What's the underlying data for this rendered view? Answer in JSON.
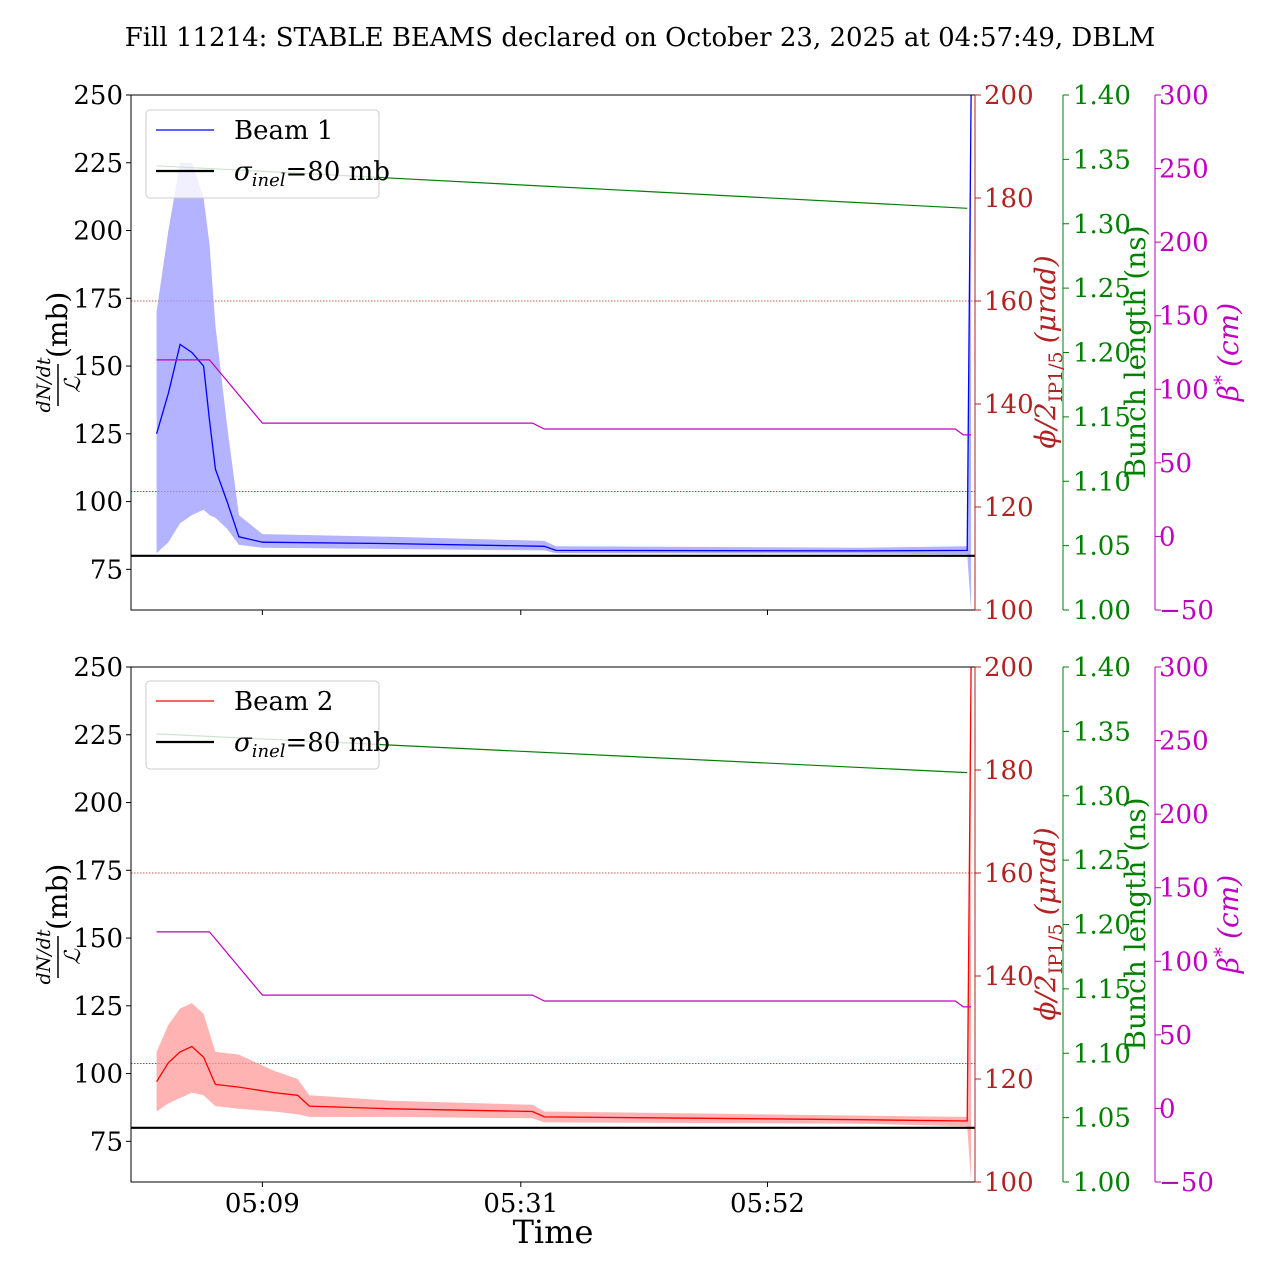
{
  "title": "Fill 11214: STABLE BEAMS declared on October 23, 2025 at 04:57:49, DBLM",
  "x_axis": {
    "label": "Time",
    "ticks": [
      "05:09",
      "05:31",
      "05:52"
    ]
  },
  "axes_labels": {
    "left_frac_num": "dN/dt",
    "left_frac_den": "ℒ",
    "left_unit": "(mb)",
    "phi_main": "ϕ/2",
    "phi_sub": "IP1/5",
    "phi_unit": "(μrad)",
    "bunch": "Bunch length (ns)",
    "beta_main": "β",
    "beta_sup": "*",
    "beta_unit": "(cm)"
  },
  "colors": {
    "beam1": "#0000ff",
    "beam1_band": "#9999ff",
    "beam2": "#ff0000",
    "beam2_band": "#ff9999",
    "sigma": "#000000",
    "phi": "#b22222",
    "bunch": "#008000",
    "beta": "#c000c0"
  },
  "chart_data": [
    {
      "type": "line",
      "panel": "top",
      "x_range": [
        "04:57:49",
        "06:09:40"
      ],
      "ylim": [
        60,
        250
      ],
      "yticks": [
        "250",
        "225",
        "200",
        "175",
        "150",
        "125",
        "100",
        "75"
      ],
      "phi_ylim": [
        100,
        200
      ],
      "phi_ticks": [
        "200",
        "180",
        "160",
        "140",
        "120",
        "100"
      ],
      "bunch_ylim": [
        1.0,
        1.4
      ],
      "bunch_ticks": [
        "1.40",
        "1.35",
        "1.30",
        "1.25",
        "1.20",
        "1.15",
        "1.10",
        "1.05",
        "1.00"
      ],
      "beta_ylim": [
        -50,
        300
      ],
      "beta_ticks": [
        "300",
        "250",
        "200",
        "150",
        "100",
        "50",
        "0",
        "−50"
      ],
      "legend": {
        "position": "top-left",
        "entries": [
          "Beam 1",
          "σinel=80 mb"
        ]
      },
      "legend_labels": {
        "beam": "Beam 1",
        "sigma_sym": "σ",
        "sigma_sub": "inel",
        "sigma_rest": "=80 mb"
      },
      "sigma_inel_mb": 80,
      "phi_reference_urad": [
        160,
        123
      ],
      "beam_points": [
        {
          "t": "05:00",
          "y": 125,
          "lo": 81,
          "hi": 170
        },
        {
          "t": "05:01",
          "y": 140,
          "lo": 85,
          "hi": 200
        },
        {
          "t": "05:02",
          "y": 158,
          "lo": 92,
          "hi": 225
        },
        {
          "t": "05:03",
          "y": 155,
          "lo": 95,
          "hi": 225
        },
        {
          "t": "05:04",
          "y": 150,
          "lo": 97,
          "hi": 212
        },
        {
          "t": "05:04:30",
          "y": 130,
          "lo": 95,
          "hi": 195
        },
        {
          "t": "05:05",
          "y": 112,
          "lo": 94,
          "hi": 165
        },
        {
          "t": "05:06",
          "y": 100,
          "lo": 90,
          "hi": 128
        },
        {
          "t": "05:07",
          "y": 87,
          "lo": 84,
          "hi": 95
        },
        {
          "t": "05:09",
          "y": 85,
          "lo": 83,
          "hi": 88
        },
        {
          "t": "05:20",
          "y": 84.5,
          "lo": 82.5,
          "hi": 87
        },
        {
          "t": "05:33",
          "y": 83.5,
          "lo": 82,
          "hi": 85.5
        },
        {
          "t": "05:34",
          "y": 82,
          "lo": 81,
          "hi": 83.5
        },
        {
          "t": "06:00",
          "y": 81.8,
          "lo": 80.8,
          "hi": 83
        },
        {
          "t": "06:09",
          "y": 82,
          "lo": 80.5,
          "hi": 83.5
        },
        {
          "t": "06:09:20",
          "y": 250,
          "lo": 60,
          "hi": 250
        }
      ],
      "bunch_points": [
        {
          "t": "05:00",
          "y": 1.345
        },
        {
          "t": "06:09",
          "y": 1.312
        }
      ],
      "beta_points": [
        {
          "t": "05:00",
          "y": 120
        },
        {
          "t": "05:04:30",
          "y": 120
        },
        {
          "t": "05:09",
          "y": 77
        },
        {
          "t": "05:32",
          "y": 77
        },
        {
          "t": "05:33",
          "y": 73
        },
        {
          "t": "06:08",
          "y": 73
        },
        {
          "t": "06:08:40",
          "y": 69
        },
        {
          "t": "06:09:20",
          "y": 69
        }
      ]
    },
    {
      "type": "line",
      "panel": "bottom",
      "x_range": [
        "04:57:49",
        "06:09:40"
      ],
      "ylim": [
        60,
        250
      ],
      "yticks": [
        "250",
        "225",
        "200",
        "175",
        "150",
        "125",
        "100",
        "75"
      ],
      "phi_ylim": [
        100,
        200
      ],
      "phi_ticks": [
        "200",
        "180",
        "160",
        "140",
        "120",
        "100"
      ],
      "bunch_ylim": [
        1.0,
        1.4
      ],
      "bunch_ticks": [
        "1.40",
        "1.35",
        "1.30",
        "1.25",
        "1.20",
        "1.15",
        "1.10",
        "1.05",
        "1.00"
      ],
      "beta_ylim": [
        -50,
        300
      ],
      "beta_ticks": [
        "300",
        "250",
        "200",
        "150",
        "100",
        "50",
        "0",
        "−50"
      ],
      "legend": {
        "position": "top-left",
        "entries": [
          "Beam 2",
          "σinel=80 mb"
        ]
      },
      "legend_labels": {
        "beam": "Beam 2",
        "sigma_sym": "σ",
        "sigma_sub": "inel",
        "sigma_rest": "=80 mb"
      },
      "sigma_inel_mb": 80,
      "phi_reference_urad": [
        160,
        123
      ],
      "beam_points": [
        {
          "t": "05:00",
          "y": 97,
          "lo": 86,
          "hi": 108
        },
        {
          "t": "05:01",
          "y": 104,
          "lo": 89,
          "hi": 118
        },
        {
          "t": "05:02",
          "y": 108,
          "lo": 91,
          "hi": 124
        },
        {
          "t": "05:03",
          "y": 110,
          "lo": 93,
          "hi": 126
        },
        {
          "t": "05:04",
          "y": 106,
          "lo": 92,
          "hi": 122
        },
        {
          "t": "05:05",
          "y": 96,
          "lo": 88,
          "hi": 108
        },
        {
          "t": "05:07",
          "y": 95,
          "lo": 87,
          "hi": 107
        },
        {
          "t": "05:10",
          "y": 93,
          "lo": 86,
          "hi": 101
        },
        {
          "t": "05:12",
          "y": 92,
          "lo": 85,
          "hi": 98
        },
        {
          "t": "05:13",
          "y": 88,
          "lo": 84,
          "hi": 92
        },
        {
          "t": "05:20",
          "y": 87,
          "lo": 84,
          "hi": 90
        },
        {
          "t": "05:32",
          "y": 86,
          "lo": 83.5,
          "hi": 88.5
        },
        {
          "t": "05:33",
          "y": 84,
          "lo": 82,
          "hi": 86
        },
        {
          "t": "06:00",
          "y": 83,
          "lo": 81.5,
          "hi": 84.5
        },
        {
          "t": "06:09",
          "y": 82.5,
          "lo": 80.5,
          "hi": 84
        },
        {
          "t": "06:09:20",
          "y": 250,
          "lo": 60,
          "hi": 250
        }
      ],
      "bunch_points": [
        {
          "t": "05:00",
          "y": 1.348
        },
        {
          "t": "06:09",
          "y": 1.318
        }
      ],
      "beta_points": [
        {
          "t": "05:00",
          "y": 120
        },
        {
          "t": "05:04:30",
          "y": 120
        },
        {
          "t": "05:09",
          "y": 77
        },
        {
          "t": "05:32",
          "y": 77
        },
        {
          "t": "05:33",
          "y": 73
        },
        {
          "t": "06:08",
          "y": 73
        },
        {
          "t": "06:08:40",
          "y": 69
        },
        {
          "t": "06:09:20",
          "y": 69
        }
      ]
    }
  ]
}
